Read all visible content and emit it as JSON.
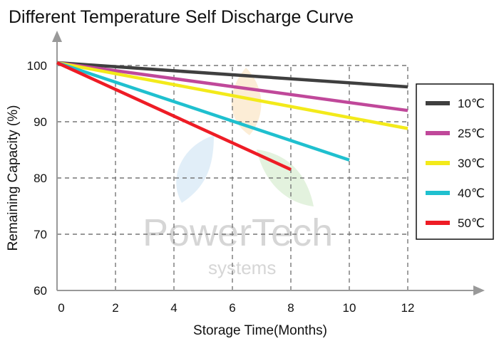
{
  "chart_data": {
    "type": "line",
    "title": "Different Temperature Self Discharge Curve",
    "xlabel": "Storage Time(Months)",
    "ylabel": "Remaining Capacity (%)",
    "xlim": [
      0,
      12
    ],
    "ylim": [
      60,
      100
    ],
    "x_ticks": [
      0,
      2,
      4,
      6,
      8,
      10,
      12
    ],
    "y_ticks": [
      60,
      70,
      80,
      90,
      100
    ],
    "grid": true,
    "grid_style": "dashed",
    "legend_position": "right",
    "series": [
      {
        "name": "10℃",
        "color": "#3f3f3f",
        "x": [
          0,
          12
        ],
        "y": [
          100.5,
          96.2
        ]
      },
      {
        "name": "25℃",
        "color": "#c0489a",
        "x": [
          0,
          12
        ],
        "y": [
          100.5,
          92.0
        ]
      },
      {
        "name": "30℃",
        "color": "#f3ea1a",
        "x": [
          0,
          12
        ],
        "y": [
          100.5,
          88.8
        ]
      },
      {
        "name": "40℃",
        "color": "#1fc0cf",
        "x": [
          0,
          10
        ],
        "y": [
          100.5,
          83.2
        ]
      },
      {
        "name": "50℃",
        "color": "#ee1c25",
        "x": [
          0,
          8
        ],
        "y": [
          100.5,
          81.5
        ]
      }
    ]
  },
  "watermark": {
    "brand": "PowerTech",
    "sub": "systems"
  }
}
